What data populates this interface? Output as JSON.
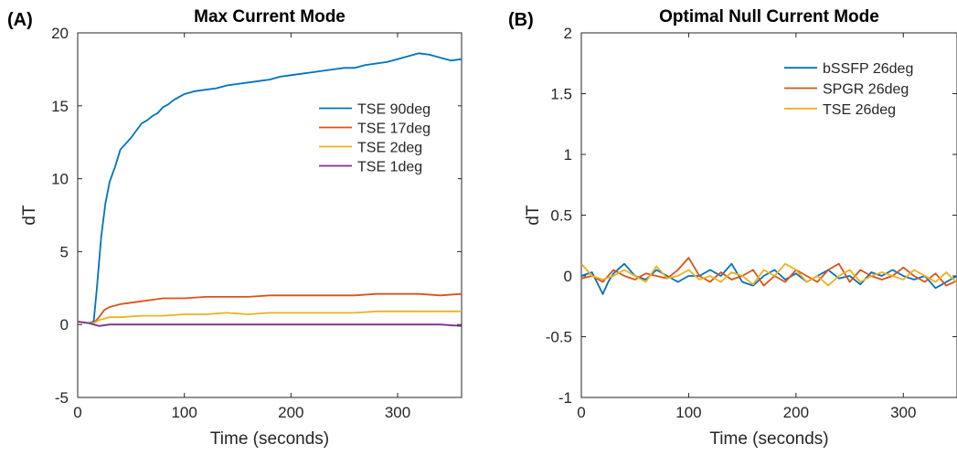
{
  "chart_data": [
    {
      "type": "line",
      "panel_label": "(A)",
      "title": "Max Current Mode",
      "xlabel": "Time (seconds)",
      "ylabel": "dT",
      "xlim": [
        0,
        360
      ],
      "ylim": [
        -5,
        20
      ],
      "xticks": [
        0,
        100,
        200,
        300
      ],
      "yticks": [
        -5,
        0,
        5,
        10,
        15,
        20
      ],
      "legend_position": "top-right",
      "series": [
        {
          "name": "TSE 90deg",
          "color": "#0072BD",
          "x": [
            0,
            10,
            15,
            18,
            22,
            26,
            30,
            35,
            40,
            45,
            50,
            55,
            60,
            65,
            70,
            75,
            80,
            85,
            90,
            95,
            100,
            110,
            120,
            130,
            140,
            150,
            160,
            170,
            180,
            190,
            200,
            210,
            220,
            230,
            240,
            250,
            260,
            270,
            280,
            290,
            300,
            310,
            320,
            330,
            340,
            350,
            360
          ],
          "y": [
            0.2,
            0.1,
            0.2,
            2.5,
            6.0,
            8.3,
            9.8,
            10.8,
            12.0,
            12.4,
            12.8,
            13.3,
            13.8,
            14.0,
            14.3,
            14.5,
            14.9,
            15.1,
            15.4,
            15.6,
            15.8,
            16.0,
            16.1,
            16.2,
            16.4,
            16.5,
            16.6,
            16.7,
            16.8,
            17.0,
            17.1,
            17.2,
            17.3,
            17.4,
            17.5,
            17.6,
            17.6,
            17.8,
            17.9,
            18.0,
            18.2,
            18.4,
            18.6,
            18.5,
            18.3,
            18.1,
            18.2
          ]
        },
        {
          "name": "TSE 17deg",
          "color": "#D95319",
          "x": [
            0,
            10,
            15,
            20,
            25,
            30,
            40,
            50,
            60,
            70,
            80,
            100,
            120,
            140,
            160,
            180,
            200,
            220,
            240,
            260,
            280,
            300,
            320,
            340,
            360
          ],
          "y": [
            0.2,
            0.1,
            0.1,
            0.5,
            1.0,
            1.2,
            1.4,
            1.5,
            1.6,
            1.7,
            1.8,
            1.8,
            1.9,
            1.9,
            1.9,
            2.0,
            2.0,
            2.0,
            2.0,
            2.0,
            2.1,
            2.1,
            2.1,
            2.0,
            2.1
          ]
        },
        {
          "name": "TSE 2deg",
          "color": "#EDB120",
          "x": [
            0,
            10,
            15,
            20,
            30,
            40,
            60,
            80,
            100,
            120,
            140,
            160,
            180,
            200,
            220,
            240,
            260,
            280,
            300,
            320,
            340,
            360
          ],
          "y": [
            0.2,
            0.1,
            0.1,
            0.3,
            0.5,
            0.5,
            0.6,
            0.6,
            0.7,
            0.7,
            0.8,
            0.7,
            0.8,
            0.8,
            0.8,
            0.8,
            0.8,
            0.9,
            0.9,
            0.9,
            0.9,
            0.9
          ]
        },
        {
          "name": "TSE 1deg",
          "color": "#7E2F8E",
          "x": [
            0,
            10,
            20,
            30,
            40,
            60,
            80,
            100,
            120,
            140,
            160,
            180,
            200,
            220,
            240,
            260,
            280,
            300,
            320,
            340,
            360
          ],
          "y": [
            0.2,
            0.1,
            -0.1,
            0.0,
            0.0,
            0.0,
            0.0,
            0.0,
            0.0,
            0.0,
            0.0,
            0.0,
            0.0,
            0.0,
            0.0,
            0.0,
            0.0,
            0.0,
            0.0,
            0.0,
            -0.1
          ]
        }
      ]
    },
    {
      "type": "line",
      "panel_label": "(B)",
      "title": "Optimal Null Current Mode",
      "xlabel": "Time (seconds)",
      "ylabel": "dT",
      "xlim": [
        0,
        350
      ],
      "ylim": [
        -1,
        2
      ],
      "xticks": [
        0,
        100,
        200,
        300
      ],
      "yticks": [
        -1,
        -0.5,
        0,
        0.5,
        1,
        1.5,
        2
      ],
      "legend_position": "top-right",
      "series": [
        {
          "name": "bSSFP 26deg",
          "color": "#0072BD",
          "x": [
            0,
            10,
            20,
            25,
            30,
            40,
            50,
            60,
            70,
            80,
            90,
            100,
            110,
            120,
            130,
            140,
            150,
            160,
            170,
            180,
            190,
            200,
            210,
            220,
            230,
            240,
            250,
            260,
            270,
            280,
            290,
            300,
            310,
            320,
            330,
            340,
            350
          ],
          "y": [
            0.0,
            0.03,
            -0.15,
            -0.05,
            0.02,
            0.1,
            0.0,
            -0.03,
            0.05,
            0.0,
            -0.05,
            0.0,
            0.0,
            0.05,
            0.0,
            0.1,
            -0.05,
            -0.08,
            0.0,
            0.05,
            -0.03,
            0.02,
            -0.05,
            0.0,
            0.05,
            -0.02,
            0.0,
            -0.07,
            0.03,
            0.0,
            0.05,
            0.0,
            -0.03,
            0.0,
            -0.1,
            -0.05,
            0.0
          ]
        },
        {
          "name": "SPGR 26deg",
          "color": "#D95319",
          "x": [
            0,
            10,
            20,
            30,
            40,
            50,
            60,
            70,
            80,
            90,
            100,
            110,
            120,
            130,
            140,
            150,
            160,
            170,
            180,
            190,
            200,
            210,
            220,
            230,
            240,
            250,
            260,
            270,
            280,
            290,
            300,
            310,
            320,
            330,
            340,
            350
          ],
          "y": [
            -0.02,
            0.0,
            -0.05,
            0.05,
            0.0,
            -0.03,
            0.02,
            0.0,
            -0.02,
            0.05,
            0.15,
            0.0,
            -0.05,
            0.03,
            -0.03,
            0.0,
            0.05,
            -0.08,
            0.0,
            -0.05,
            0.05,
            0.0,
            -0.05,
            0.05,
            0.1,
            -0.05,
            0.05,
            0.0,
            -0.03,
            0.0,
            0.07,
            0.0,
            -0.05,
            0.02,
            -0.08,
            -0.04
          ]
        },
        {
          "name": "TSE 26deg",
          "color": "#EDB120",
          "x": [
            0,
            10,
            20,
            30,
            40,
            50,
            60,
            70,
            80,
            90,
            100,
            110,
            120,
            130,
            140,
            150,
            160,
            170,
            180,
            190,
            200,
            210,
            220,
            230,
            240,
            250,
            260,
            270,
            280,
            290,
            300,
            310,
            320,
            330,
            340,
            350
          ],
          "y": [
            0.1,
            0.0,
            -0.03,
            0.0,
            0.05,
            0.0,
            -0.05,
            0.08,
            -0.02,
            0.0,
            0.05,
            -0.03,
            0.0,
            -0.05,
            0.03,
            0.0,
            -0.07,
            0.05,
            0.0,
            0.1,
            0.05,
            -0.05,
            0.0,
            -0.08,
            0.0,
            0.05,
            -0.05,
            0.0,
            0.03,
            0.0,
            -0.03,
            0.05,
            0.0,
            -0.05,
            0.03,
            -0.06
          ]
        }
      ]
    }
  ]
}
